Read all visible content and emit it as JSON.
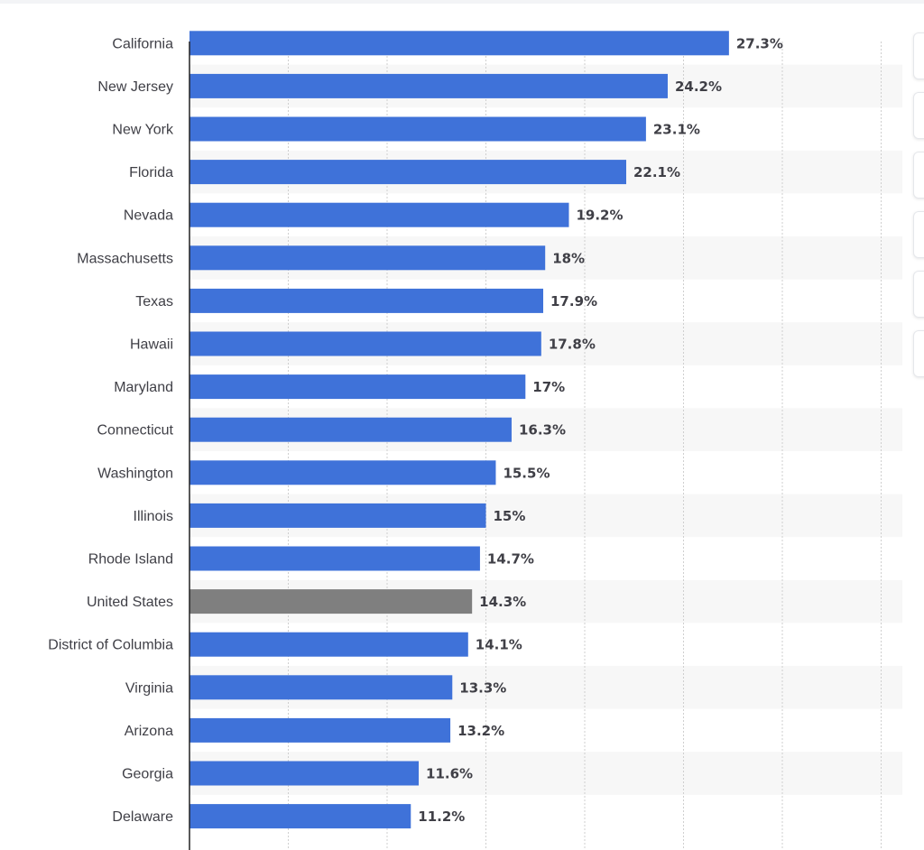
{
  "chart_data": {
    "type": "bar",
    "orientation": "horizontal",
    "categories": [
      "California",
      "New Jersey",
      "New York",
      "Florida",
      "Nevada",
      "Massachusetts",
      "Texas",
      "Hawaii",
      "Maryland",
      "Connecticut",
      "Washington",
      "Illinois",
      "Rhode Island",
      "United States",
      "District of Columbia",
      "Virginia",
      "Arizona",
      "Georgia",
      "Delaware"
    ],
    "values": [
      27.3,
      24.2,
      23.1,
      22.1,
      19.2,
      18,
      17.9,
      17.8,
      17,
      16.3,
      15.5,
      15,
      14.7,
      14.3,
      14.1,
      13.3,
      13.2,
      11.6,
      11.2
    ],
    "value_labels": [
      "27.3%",
      "24.2%",
      "23.1%",
      "22.1%",
      "19.2%",
      "18%",
      "17.9%",
      "17.8%",
      "17%",
      "16.3%",
      "15.5%",
      "15%",
      "14.7%",
      "14.3%",
      "14.1%",
      "13.3%",
      "13.2%",
      "11.6%",
      "11.2%"
    ],
    "highlight_category": "United States",
    "xlim": [
      0,
      35
    ],
    "grid_step": 5,
    "grid": true,
    "colors": {
      "bar": "#3f72d9",
      "highlight": "#7f7f7f",
      "stripe": "#f7f7f7",
      "grid": "#cfcfcf",
      "axis": "#222222",
      "text": "#3f3f46"
    }
  }
}
